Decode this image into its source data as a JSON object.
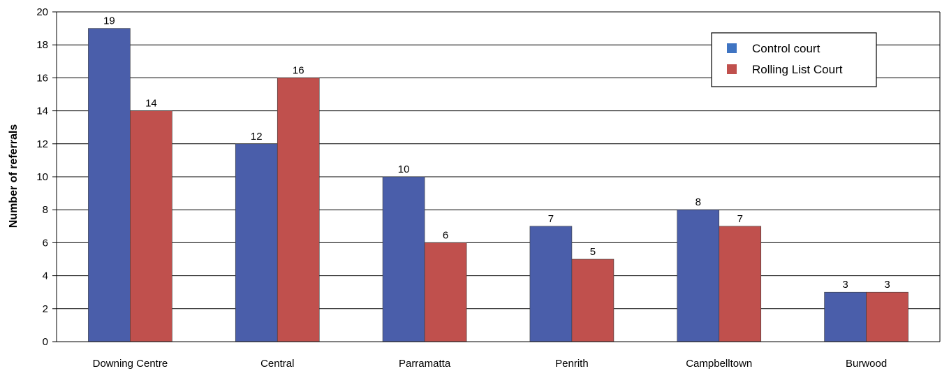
{
  "chart_data": {
    "type": "bar",
    "ylabel": "Number of referrals",
    "xlabel": "",
    "ylim": [
      0,
      20
    ],
    "yticks": [
      0,
      2,
      4,
      6,
      8,
      10,
      12,
      14,
      16,
      18,
      20
    ],
    "grid": true,
    "legend_position": "top-right",
    "categories": [
      "Downing Centre",
      "Central",
      "Parramatta",
      "Penrith",
      "Campbelltown",
      "Burwood"
    ],
    "series": [
      {
        "name": "Control court",
        "color": "#4a5eaa",
        "legend_color": "#3f74c2",
        "values": [
          19,
          12,
          10,
          7,
          8,
          3
        ]
      },
      {
        "name": "Rolling List Court",
        "color": "#c0504d",
        "legend_color": "#c0504d",
        "values": [
          14,
          16,
          6,
          5,
          7,
          3
        ]
      }
    ]
  }
}
